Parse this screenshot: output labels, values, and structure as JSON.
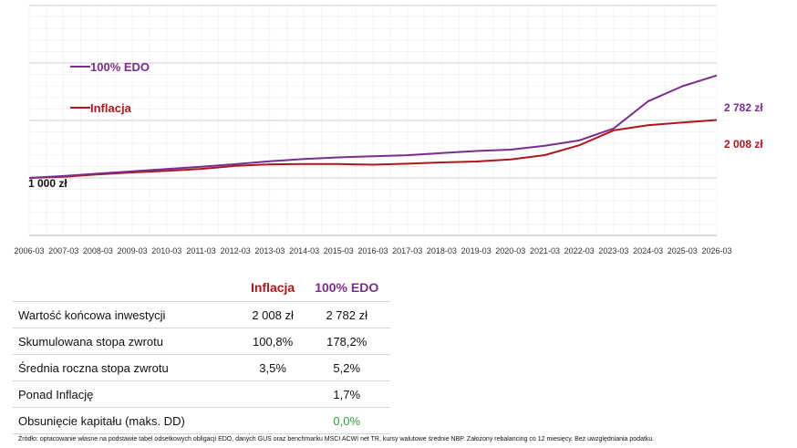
{
  "chart_data": {
    "type": "line",
    "x": [
      "2006-03",
      "2007-03",
      "2008-03",
      "2009-03",
      "2010-03",
      "2011-03",
      "2012-03",
      "2013-03",
      "2014-03",
      "2015-03",
      "2016-03",
      "2017-03",
      "2018-03",
      "2019-03",
      "2020-03",
      "2021-03",
      "2022-03",
      "2023-03",
      "2024-03",
      "2025-03",
      "2026-03"
    ],
    "series": [
      {
        "name": "100% EDO",
        "color": "#7b2d8e",
        "values": [
          1000,
          1034,
          1074,
          1115,
          1155,
          1196,
          1240,
          1289,
          1328,
          1357,
          1378,
          1396,
          1431,
          1469,
          1492,
          1560,
          1652,
          1861,
          2331,
          2596,
          2782
        ]
      },
      {
        "name": "Inflacja",
        "color": "#b0161e",
        "values": [
          1000,
          1020,
          1062,
          1095,
          1124,
          1157,
          1209,
          1237,
          1243,
          1241,
          1230,
          1248,
          1270,
          1285,
          1323,
          1397,
          1569,
          1827,
          1917,
          1963,
          2008
        ]
      }
    ],
    "ylim": [
      0,
      4000
    ],
    "start_label": "1 000 zł",
    "end_labels": [
      "2 782 zł",
      "2 008 zł"
    ],
    "grid": true,
    "legend_position": "top-left"
  },
  "table": {
    "headers": [
      "",
      "Inflacja",
      "100% EDO"
    ],
    "header_colors": [
      "#111111",
      "#b0161e",
      "#7b2d8e"
    ],
    "rows": [
      {
        "label": "Wartość końcowa inwestycji",
        "inflacja": "2 008 zł",
        "edo": "2 782 zł"
      },
      {
        "label": "Skumulowana stopa zwrotu",
        "inflacja": "100,8%",
        "edo": "178,2%"
      },
      {
        "label": "Średnia roczna stopa zwrotu",
        "inflacja": "3,5%",
        "edo": "5,2%"
      },
      {
        "label": "Ponad Inflację",
        "inflacja": "",
        "edo": "1,7%"
      },
      {
        "label": "Obsunięcie kapitału (maks. DD)",
        "inflacja": "",
        "edo": "0,0%"
      }
    ],
    "dd_color": "#2e9e3e"
  },
  "footnote": "Źródło: opracowanie własne na podstawie tabel odsetkowych obligacji EDO, danych GUS oraz benchmarku MSCI ACWI net TR, kursy walutowe średnie NBP. Założony rebalancing co 12 miesięcy. Bez uwzględniania podatku."
}
